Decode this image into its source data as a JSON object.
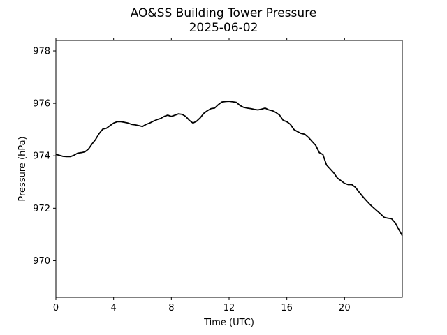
{
  "chart_data": {
    "type": "line",
    "title_line1": "AO&SS Building Tower Pressure",
    "title_line2": "2025-06-02",
    "xlabel": "Time (UTC)",
    "ylabel": "Pressure (hPa)",
    "xlim": [
      0,
      24
    ],
    "ylim": [
      968.6,
      978.4
    ],
    "xticks": [
      0,
      4,
      8,
      12,
      16,
      20
    ],
    "xtick_labels": [
      "0",
      "4",
      "8",
      "12",
      "16",
      "20"
    ],
    "yticks": [
      970,
      972,
      974,
      976,
      978
    ],
    "ytick_labels": [
      "970",
      "972",
      "974",
      "976",
      "978"
    ],
    "grid": false,
    "line_color": "#000000",
    "series": [
      {
        "x": [
          0,
          0.25,
          0.5,
          0.75,
          1.0,
          1.25,
          1.5,
          1.75,
          2.0,
          2.25,
          2.5,
          2.75,
          3.0,
          3.25,
          3.5,
          3.75,
          4.0,
          4.25,
          4.5,
          4.75,
          5.0,
          5.25,
          5.5,
          5.75,
          6.0,
          6.25,
          6.5,
          6.75,
          7.0,
          7.25,
          7.5,
          7.75,
          8.0,
          8.25,
          8.5,
          8.75,
          9.0,
          9.25,
          9.5,
          9.75,
          10.0,
          10.25,
          10.5,
          10.75,
          11.0,
          11.25,
          11.5,
          11.75,
          12.0,
          12.25,
          12.5,
          12.75,
          13.0,
          13.25,
          13.5,
          13.75,
          14.0,
          14.25,
          14.5,
          14.75,
          15.0,
          15.25,
          15.5,
          15.75,
          16.0,
          16.25,
          16.5,
          16.75,
          17.0,
          17.25,
          17.5,
          17.75,
          18.0,
          18.25,
          18.5,
          18.75,
          19.0,
          19.25,
          19.5,
          19.75,
          20.0,
          20.25,
          20.5,
          20.75,
          21.0,
          21.25,
          21.5,
          21.75,
          22.0,
          22.25,
          22.5,
          22.75,
          23.0,
          23.25,
          23.5,
          23.75,
          24.0
        ],
        "y": [
          974.05,
          974.02,
          973.98,
          973.97,
          973.97,
          974.02,
          974.1,
          974.12,
          974.15,
          974.25,
          974.45,
          974.62,
          974.85,
          975.02,
          975.05,
          975.15,
          975.25,
          975.3,
          975.3,
          975.28,
          975.25,
          975.2,
          975.18,
          975.15,
          975.12,
          975.2,
          975.25,
          975.32,
          975.38,
          975.42,
          975.5,
          975.55,
          975.5,
          975.55,
          975.6,
          975.58,
          975.5,
          975.35,
          975.25,
          975.32,
          975.45,
          975.62,
          975.72,
          975.8,
          975.82,
          975.95,
          976.05,
          976.07,
          976.08,
          976.06,
          976.04,
          975.92,
          975.85,
          975.82,
          975.8,
          975.77,
          975.75,
          975.78,
          975.82,
          975.75,
          975.72,
          975.65,
          975.55,
          975.35,
          975.3,
          975.2,
          975.0,
          974.92,
          974.85,
          974.82,
          974.7,
          974.55,
          974.4,
          974.12,
          974.05,
          973.65,
          973.5,
          973.35,
          973.15,
          973.05,
          972.95,
          972.9,
          972.9,
          972.8,
          972.62,
          972.45,
          972.3,
          972.15,
          972.02,
          971.9,
          971.78,
          971.65,
          971.62,
          971.6,
          971.45,
          971.2,
          970.95
        ]
      }
    ]
  }
}
